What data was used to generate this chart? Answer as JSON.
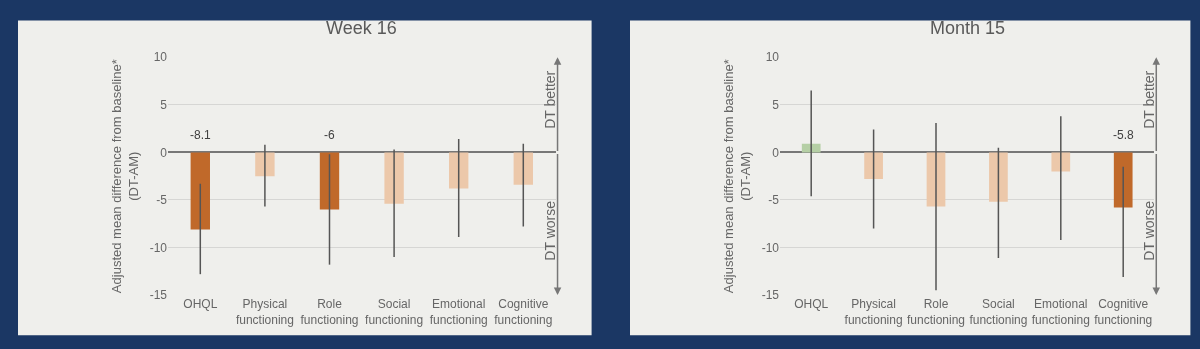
{
  "chart_data": [
    {
      "type": "bar",
      "title": "Week 16",
      "ylabel": "Adjusted mean difference from baseline*\n(DT-AM)",
      "categories": [
        "OHQL",
        "Physical functioning",
        "Role functioning",
        "Social functioning",
        "Emotional functioning",
        "Cognitive functioning"
      ],
      "values": [
        -8.1,
        -2.5,
        -6,
        -5.4,
        -3.8,
        -3.4
      ],
      "colors": [
        "#c0692a",
        "#ecc8aa",
        "#c0692a",
        "#ecc8aa",
        "#ecc8aa",
        "#ecc8aa"
      ],
      "errors": [
        [
          -12.8,
          -3.3
        ],
        [
          -5.7,
          0.8
        ],
        [
          -11.8,
          -0.2
        ],
        [
          -11.0,
          0.3
        ],
        [
          -8.9,
          1.4
        ],
        [
          -7.8,
          0.9
        ]
      ],
      "value_labels": [
        "-8.1",
        null,
        "-6",
        null,
        null,
        null
      ],
      "ylim": [
        -15,
        10
      ],
      "yticks": [
        -15,
        -10,
        -5,
        0,
        5,
        10
      ],
      "grid": "y",
      "annotations": [
        "DT better",
        "DT worse"
      ]
    },
    {
      "type": "bar",
      "title": "Month 15",
      "ylabel": "Adjusted mean difference from baseline*\n(DT-AM)",
      "categories": [
        "OHQL",
        "Physical functioning",
        "Role functioning",
        "Social functioning",
        "Emotional functioning",
        "Cognitive functioning"
      ],
      "values": [
        0.9,
        -2.8,
        -5.7,
        -5.2,
        -2.0,
        -5.8
      ],
      "colors": [
        "#b5cfa5",
        "#ecc8aa",
        "#ecc8aa",
        "#ecc8aa",
        "#ecc8aa",
        "#c0692a"
      ],
      "errors": [
        [
          -4.6,
          6.5
        ],
        [
          -8.0,
          2.4
        ],
        [
          -14.5,
          3.1
        ],
        [
          -11.1,
          0.5
        ],
        [
          -9.2,
          3.8
        ],
        [
          -13.1,
          -1.5
        ]
      ],
      "value_labels": [
        null,
        null,
        null,
        null,
        null,
        "-5.8"
      ],
      "ylim": [
        -15,
        10
      ],
      "yticks": [
        -15,
        -10,
        -5,
        0,
        5,
        10
      ],
      "grid": "y",
      "annotations": [
        "DT better",
        "DT worse"
      ]
    }
  ]
}
